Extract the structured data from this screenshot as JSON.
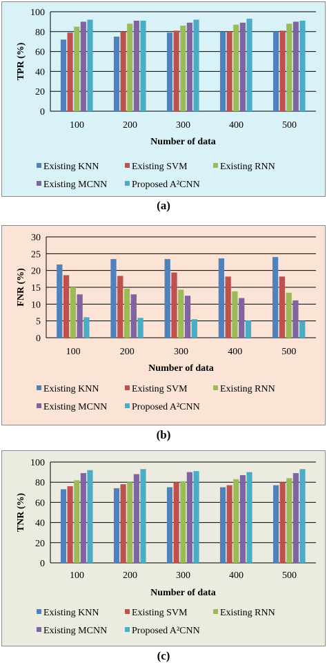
{
  "chart_data": [
    {
      "type": "bar",
      "panel_label": "(a)",
      "background": "#d9f2f8",
      "xlabel": "Number of data",
      "ylabel": "TPR (%)",
      "ylim": [
        0,
        100
      ],
      "ytick_step": 20,
      "grid": true,
      "legend_placement": "bottom",
      "categories": [
        "100",
        "200",
        "300",
        "400",
        "500"
      ],
      "series": [
        {
          "name": "Existing KNN",
          "color": "#4f81bd",
          "values": [
            72,
            75,
            79,
            80,
            80
          ]
        },
        {
          "name": "Existing SVM",
          "color": "#c0504d",
          "values": [
            79,
            80,
            81,
            80,
            81
          ]
        },
        {
          "name": "Existing RNN",
          "color": "#9bbb59",
          "values": [
            85,
            88,
            86,
            87,
            88
          ]
        },
        {
          "name": "Existing MCNN",
          "color": "#8064a2",
          "values": [
            90,
            91,
            89,
            89,
            90
          ]
        },
        {
          "name": "Proposed A²CNN",
          "color": "#4bacc6",
          "values": [
            92,
            91,
            92,
            93,
            91
          ]
        }
      ]
    },
    {
      "type": "bar",
      "panel_label": "(b)",
      "background": "#fbe4d5",
      "xlabel": "Number of data",
      "ylabel": "FNR (%)",
      "ylim": [
        0,
        30
      ],
      "ytick_step": 5,
      "grid": true,
      "legend_placement": "bottom",
      "categories": [
        "100",
        "200",
        "300",
        "400",
        "500"
      ],
      "series": [
        {
          "name": "Existing KNN",
          "color": "#4f81bd",
          "values": [
            21.8,
            23.4,
            23.4,
            23.6,
            24.0
          ]
        },
        {
          "name": "Existing SVM",
          "color": "#c0504d",
          "values": [
            18.6,
            18.4,
            19.4,
            18.2,
            18.2
          ]
        },
        {
          "name": "Existing RNN",
          "color": "#9bbb59",
          "values": [
            15.0,
            14.6,
            14.3,
            13.8,
            13.4
          ]
        },
        {
          "name": "Existing MCNN",
          "color": "#8064a2",
          "values": [
            12.9,
            12.9,
            12.5,
            11.8,
            11.1
          ]
        },
        {
          "name": "Proposed A²CNN",
          "color": "#4bacc6",
          "values": [
            6.1,
            5.9,
            5.5,
            5.1,
            5.0
          ]
        }
      ]
    },
    {
      "type": "bar",
      "panel_label": "(c)",
      "background": "#ecebdf",
      "xlabel": "Number of data",
      "ylabel": "TNR (%)",
      "ylim": [
        0,
        100
      ],
      "ytick_step": 20,
      "grid": true,
      "legend_placement": "bottom",
      "categories": [
        "100",
        "200",
        "300",
        "400",
        "500"
      ],
      "series": [
        {
          "name": "Existing KNN",
          "color": "#4f81bd",
          "values": [
            73,
            74,
            75,
            75,
            77
          ]
        },
        {
          "name": "Existing SVM",
          "color": "#c0504d",
          "values": [
            76,
            78,
            80,
            77,
            80
          ]
        },
        {
          "name": "Existing RNN",
          "color": "#9bbb59",
          "values": [
            82,
            80,
            81,
            83,
            84
          ]
        },
        {
          "name": "Existing MCNN",
          "color": "#8064a2",
          "values": [
            89,
            88,
            90,
            87,
            89
          ]
        },
        {
          "name": "Proposed A²CNN",
          "color": "#4bacc6",
          "values": [
            92,
            93,
            91,
            90,
            93
          ]
        }
      ]
    }
  ]
}
